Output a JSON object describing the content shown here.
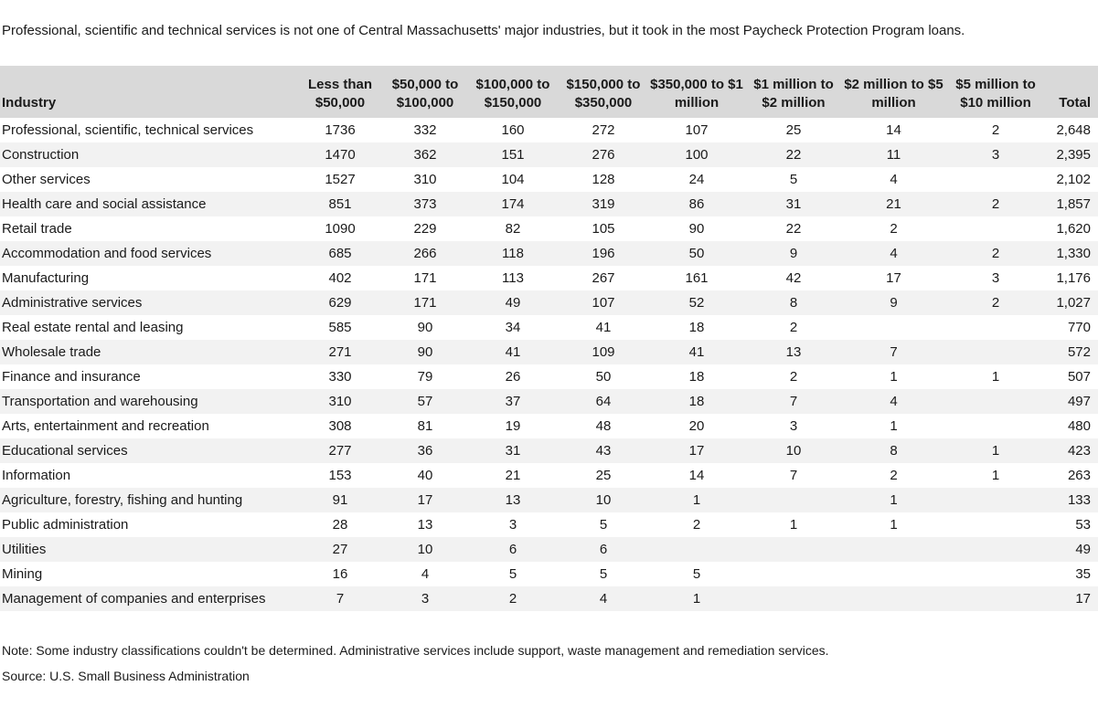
{
  "title": "Professional, scientific and technical services is not one of Central Massachusetts' major industries, but it took in the most Paycheck Protection Program loans.",
  "note": "Note: Some industry classifications couldn't be determined. Administrative services include support, waste management and remediation services.",
  "source": "Source: U.S. Small Business Administration",
  "colors": {
    "header_bg": "#d9d9d9",
    "stripe_bg": "#f2f2f2",
    "text_color": "#1a1a1a"
  },
  "chart_data": {
    "type": "table",
    "title": "Professional, scientific and technical services is not one of Central Massachusetts' major industries, but it took in the most Paycheck Protection Program loans.",
    "columns": [
      "Industry",
      "Less than $50,000",
      "$50,000 to $100,000",
      "$100,000 to $150,000",
      "$150,000 to $350,000",
      "$350,000 to $1 million",
      "$1 million to $2 million",
      "$2 million to $5 million",
      "$5 million to $10 million",
      "Total"
    ],
    "rows": [
      [
        "Professional, scientific, technical services",
        "1736",
        "332",
        "160",
        "272",
        "107",
        "25",
        "14",
        "2",
        "2,648"
      ],
      [
        "Construction",
        "1470",
        "362",
        "151",
        "276",
        "100",
        "22",
        "11",
        "3",
        "2,395"
      ],
      [
        "Other services",
        "1527",
        "310",
        "104",
        "128",
        "24",
        "5",
        "4",
        "",
        "2,102"
      ],
      [
        "Health care and social assistance",
        "851",
        "373",
        "174",
        "319",
        "86",
        "31",
        "21",
        "2",
        "1,857"
      ],
      [
        "Retail trade",
        "1090",
        "229",
        "82",
        "105",
        "90",
        "22",
        "2",
        "",
        "1,620"
      ],
      [
        "Accommodation and food services",
        "685",
        "266",
        "118",
        "196",
        "50",
        "9",
        "4",
        "2",
        "1,330"
      ],
      [
        "Manufacturing",
        "402",
        "171",
        "113",
        "267",
        "161",
        "42",
        "17",
        "3",
        "1,176"
      ],
      [
        "Administrative services",
        "629",
        "171",
        "49",
        "107",
        "52",
        "8",
        "9",
        "2",
        "1,027"
      ],
      [
        "Real estate rental and leasing",
        "585",
        "90",
        "34",
        "41",
        "18",
        "2",
        "",
        "",
        "770"
      ],
      [
        "Wholesale trade",
        "271",
        "90",
        "41",
        "109",
        "41",
        "13",
        "7",
        "",
        "572"
      ],
      [
        "Finance and insurance",
        "330",
        "79",
        "26",
        "50",
        "18",
        "2",
        "1",
        "1",
        "507"
      ],
      [
        "Transportation and warehousing",
        "310",
        "57",
        "37",
        "64",
        "18",
        "7",
        "4",
        "",
        "497"
      ],
      [
        "Arts, entertainment and recreation",
        "308",
        "81",
        "19",
        "48",
        "20",
        "3",
        "1",
        "",
        "480"
      ],
      [
        "Educational services",
        "277",
        "36",
        "31",
        "43",
        "17",
        "10",
        "8",
        "1",
        "423"
      ],
      [
        "Information",
        "153",
        "40",
        "21",
        "25",
        "14",
        "7",
        "2",
        "1",
        "263"
      ],
      [
        "Agriculture, forestry, fishing and hunting",
        "91",
        "17",
        "13",
        "10",
        "1",
        "",
        "1",
        "",
        "133"
      ],
      [
        "Public administration",
        "28",
        "13",
        "3",
        "5",
        "2",
        "1",
        "1",
        "",
        "53"
      ],
      [
        "Utilities",
        "27",
        "10",
        "6",
        "6",
        "",
        "",
        "",
        "",
        "49"
      ],
      [
        "Mining",
        "16",
        "4",
        "5",
        "5",
        "5",
        "",
        "",
        "",
        "35"
      ],
      [
        "Management of companies and enterprises",
        "7",
        "3",
        "2",
        "4",
        "1",
        "",
        "",
        "",
        "17"
      ]
    ],
    "layout": {
      "striped_rows": "even",
      "grid": false,
      "industry_column_align": "left",
      "numeric_columns_align": "center",
      "total_column_align": "right"
    }
  }
}
